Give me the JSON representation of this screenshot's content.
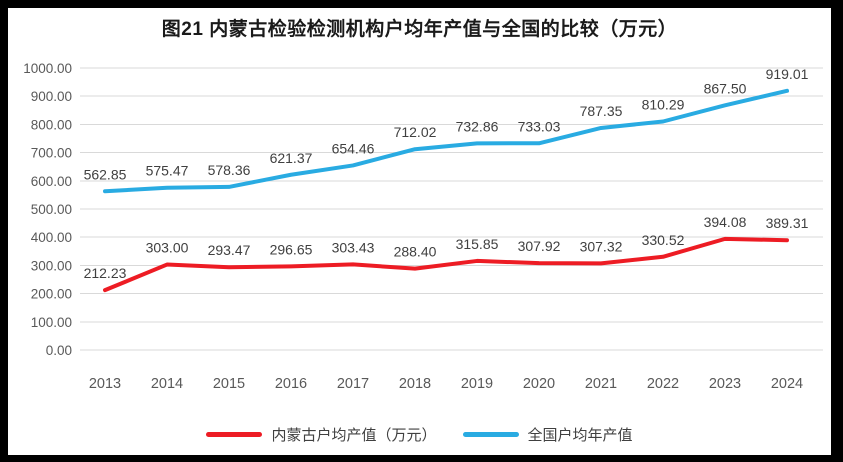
{
  "chart_data": {
    "type": "line",
    "title": "图21 内蒙古检验检测机构户均年产值与全国的比较（万元）",
    "categories": [
      "2013",
      "2014",
      "2015",
      "2016",
      "2017",
      "2018",
      "2019",
      "2020",
      "2021",
      "2022",
      "2023",
      "2024"
    ],
    "series": [
      {
        "name": "内蒙古户均产值（万元）",
        "color": "#ED1C24",
        "values": [
          212.23,
          303.0,
          293.47,
          296.65,
          303.43,
          288.4,
          315.85,
          307.92,
          307.32,
          330.52,
          394.08,
          389.31
        ]
      },
      {
        "name": "全国户均年产值",
        "color": "#29ABE2",
        "values": [
          562.85,
          575.47,
          578.36,
          621.37,
          654.46,
          712.02,
          732.86,
          733.03,
          787.35,
          810.29,
          867.5,
          919.01
        ]
      }
    ],
    "xlabel": "",
    "ylabel": "",
    "ylim": [
      0,
      1000
    ],
    "ytick_step": 100,
    "ytick_labels": [
      "0.00",
      "100.00",
      "200.00",
      "300.00",
      "400.00",
      "500.00",
      "600.00",
      "700.00",
      "800.00",
      "900.00",
      "1000.00"
    ],
    "grid": true,
    "data_labels": true,
    "legend_position": "bottom",
    "colors": {
      "grid": "#D9D9D9",
      "axis_text": "#595959",
      "data_label_text": "#404040",
      "title_text": "#1A1A1A",
      "frame_border": "#000000",
      "background": "#FFFFFF"
    }
  }
}
